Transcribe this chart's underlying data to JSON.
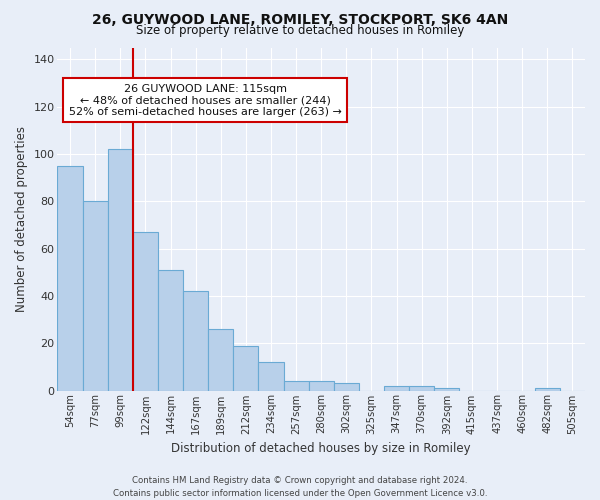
{
  "title1": "26, GUYWOOD LANE, ROMILEY, STOCKPORT, SK6 4AN",
  "title2": "Size of property relative to detached houses in Romiley",
  "xlabel": "Distribution of detached houses by size in Romiley",
  "ylabel": "Number of detached properties",
  "categories": [
    "54sqm",
    "77sqm",
    "99sqm",
    "122sqm",
    "144sqm",
    "167sqm",
    "189sqm",
    "212sqm",
    "234sqm",
    "257sqm",
    "280sqm",
    "302sqm",
    "325sqm",
    "347sqm",
    "370sqm",
    "392sqm",
    "415sqm",
    "437sqm",
    "460sqm",
    "482sqm",
    "505sqm"
  ],
  "values": [
    95,
    80,
    102,
    67,
    51,
    42,
    26,
    19,
    12,
    4,
    4,
    3,
    0,
    2,
    2,
    1,
    0,
    0,
    0,
    1,
    0
  ],
  "bar_color": "#b8d0ea",
  "bar_edge_color": "#6aaad4",
  "red_line_x": 2.5,
  "annotation_text": "26 GUYWOOD LANE: 115sqm\n← 48% of detached houses are smaller (244)\n52% of semi-detached houses are larger (263) →",
  "annotation_box_color": "white",
  "annotation_box_edge_color": "#cc0000",
  "ylim": [
    0,
    145
  ],
  "yticks": [
    0,
    20,
    40,
    60,
    80,
    100,
    120,
    140
  ],
  "background_color": "#e8eef8",
  "grid_color": "white",
  "footer": "Contains HM Land Registry data © Crown copyright and database right 2024.\nContains public sector information licensed under the Open Government Licence v3.0."
}
